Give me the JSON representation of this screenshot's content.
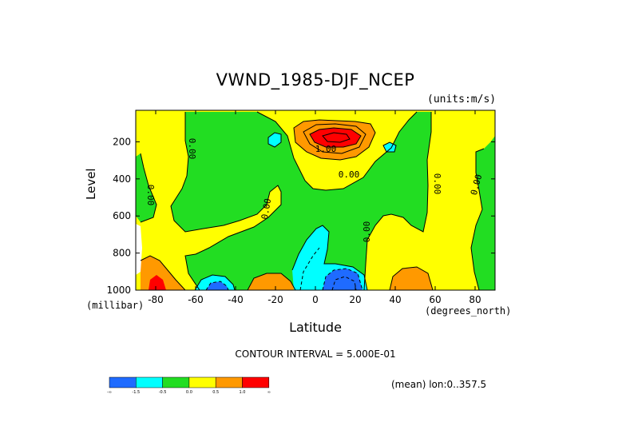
{
  "chart_data": {
    "type": "heatmap",
    "title": "VWND_1985-DJF_NCEP",
    "units_note": "(units:m/s)",
    "xlabel": "Latitude",
    "x_units": "(degrees_north)",
    "ylabel": "Level",
    "y_units": "(millibar)",
    "xlim": [
      -90,
      90
    ],
    "ylim": [
      1000,
      30
    ],
    "x_ticks": [
      -80,
      -60,
      -40,
      -20,
      0,
      20,
      40,
      60,
      80
    ],
    "y_ticks": [
      200,
      400,
      600,
      800,
      1000
    ],
    "contour_interval_text": "CONTOUR INTERVAL = 5.000E-01",
    "mean_note": "(mean) lon:0..357.5",
    "contour_labels": [
      "0.00",
      "0.00",
      "0.00",
      "1.00",
      "0.00",
      "0.00",
      "0.00",
      "0.00"
    ],
    "colorbar": {
      "colors": [
        "#1f6bff",
        "#00ffff",
        "#22dd22",
        "#ffff00",
        "#ff9900",
        "#ff0000"
      ],
      "tick_labels": [
        "-∞",
        "-1.5",
        "-0.5",
        "0.0",
        "0.5",
        "1.0",
        "∞"
      ]
    }
  }
}
